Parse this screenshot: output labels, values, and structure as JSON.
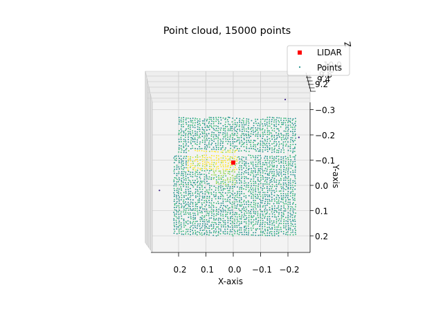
{
  "chart_data": {
    "type": "scatter",
    "projection": "3d",
    "title": "Point cloud, 15000 points",
    "xlabel": "X-axis",
    "ylabel": "Y-axis",
    "zlabel": "Z",
    "xlim": [
      -0.27,
      0.3
    ],
    "ylim": [
      -0.34,
      0.26
    ],
    "x_ticks": [
      0.2,
      0.1,
      0.0,
      -0.1,
      -0.2
    ],
    "x_tick_labels": [
      "0.2",
      "0.1",
      "0.0",
      "−0.1",
      "−0.2"
    ],
    "y_ticks": [
      -0.3,
      -0.2,
      -0.1,
      0.0,
      0.1,
      0.2
    ],
    "y_tick_labels": [
      "−0.3",
      "−0.2",
      "−0.1",
      "0.0",
      "0.1",
      "0.2"
    ],
    "z_tick_labels": [
      "9.2",
      "9.4",
      "9.6",
      "9.8",
      "10.0"
    ],
    "legend_position": "upper-right",
    "series": [
      {
        "name": "LIDAR",
        "marker": "square",
        "color": "#ff0000",
        "points": [
          {
            "x": 0.0,
            "y": -0.09
          }
        ]
      },
      {
        "name": "Points",
        "marker": "dot",
        "colormap": "viridis",
        "count": 15000,
        "color_samples": [
          "#21918c",
          "#35b779",
          "#90d743",
          "#fde725"
        ],
        "outliers": [
          {
            "x": -0.19,
            "y": -0.34
          },
          {
            "x": -0.24,
            "y": -0.19
          },
          {
            "x": 0.27,
            "y": 0.02
          }
        ]
      }
    ]
  }
}
